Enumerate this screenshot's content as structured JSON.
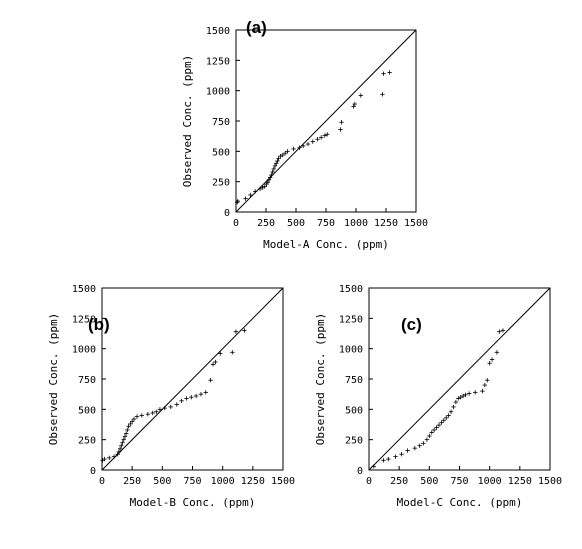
{
  "chart_data": [
    {
      "type": "scatter",
      "panel_label": "(a)",
      "xlabel": "Model-A Conc. (ppm)",
      "ylabel": "Observed Conc. (ppm)",
      "xlim": [
        0,
        1500
      ],
      "ylim": [
        0,
        1500
      ],
      "xticks": [
        "0",
        "250",
        "500",
        "750",
        "1000",
        "1250",
        "1500"
      ],
      "yticks": [
        "0",
        "250",
        "500",
        "750",
        "1000",
        "1250",
        "1500"
      ],
      "reference_line": "y = x",
      "marker": "plus",
      "grid": false,
      "points": [
        [
          10,
          80
        ],
        [
          15,
          90
        ],
        [
          80,
          110
        ],
        [
          120,
          140
        ],
        [
          160,
          170
        ],
        [
          200,
          190
        ],
        [
          220,
          200
        ],
        [
          240,
          210
        ],
        [
          255,
          230
        ],
        [
          265,
          245
        ],
        [
          275,
          265
        ],
        [
          285,
          285
        ],
        [
          295,
          305
        ],
        [
          305,
          330
        ],
        [
          315,
          355
        ],
        [
          325,
          380
        ],
        [
          335,
          400
        ],
        [
          345,
          420
        ],
        [
          355,
          440
        ],
        [
          370,
          460
        ],
        [
          390,
          470
        ],
        [
          410,
          485
        ],
        [
          430,
          500
        ],
        [
          480,
          520
        ],
        [
          530,
          530
        ],
        [
          560,
          545
        ],
        [
          600,
          560
        ],
        [
          640,
          580
        ],
        [
          680,
          600
        ],
        [
          710,
          615
        ],
        [
          740,
          630
        ],
        [
          760,
          640
        ],
        [
          870,
          680
        ],
        [
          880,
          740
        ],
        [
          980,
          870
        ],
        [
          990,
          890
        ],
        [
          1040,
          960
        ],
        [
          1220,
          970
        ],
        [
          1230,
          1140
        ],
        [
          1280,
          1150
        ]
      ]
    },
    {
      "type": "scatter",
      "panel_label": "(b)",
      "xlabel": "Model-B Conc. (ppm)",
      "ylabel": "Observed Conc. (ppm)",
      "xlim": [
        0,
        1500
      ],
      "ylim": [
        0,
        1500
      ],
      "xticks": [
        "0",
        "250",
        "500",
        "750",
        "1000",
        "1250",
        "1500"
      ],
      "yticks": [
        "0",
        "250",
        "500",
        "750",
        "1000",
        "1250",
        "1500"
      ],
      "reference_line": "y = x",
      "marker": "plus",
      "grid": false,
      "points": [
        [
          5,
          80
        ],
        [
          20,
          90
        ],
        [
          60,
          100
        ],
        [
          100,
          110
        ],
        [
          130,
          130
        ],
        [
          140,
          150
        ],
        [
          150,
          175
        ],
        [
          160,
          200
        ],
        [
          170,
          225
        ],
        [
          180,
          250
        ],
        [
          190,
          275
        ],
        [
          200,
          300
        ],
        [
          210,
          330
        ],
        [
          220,
          360
        ],
        [
          235,
          380
        ],
        [
          250,
          400
        ],
        [
          265,
          420
        ],
        [
          290,
          440
        ],
        [
          330,
          450
        ],
        [
          380,
          460
        ],
        [
          420,
          470
        ],
        [
          450,
          480
        ],
        [
          480,
          500
        ],
        [
          520,
          510
        ],
        [
          570,
          520
        ],
        [
          620,
          540
        ],
        [
          660,
          570
        ],
        [
          700,
          590
        ],
        [
          740,
          600
        ],
        [
          780,
          610
        ],
        [
          820,
          625
        ],
        [
          860,
          640
        ],
        [
          900,
          740
        ],
        [
          920,
          870
        ],
        [
          940,
          890
        ],
        [
          980,
          960
        ],
        [
          1080,
          970
        ],
        [
          1110,
          1140
        ],
        [
          1180,
          1150
        ]
      ]
    },
    {
      "type": "scatter",
      "panel_label": "(c)",
      "xlabel": "Model-C Conc. (ppm)",
      "ylabel": "Observed Conc. (ppm)",
      "xlim": [
        0,
        1500
      ],
      "ylim": [
        0,
        1500
      ],
      "xticks": [
        "0",
        "250",
        "500",
        "750",
        "1000",
        "1250",
        "1500"
      ],
      "yticks": [
        "0",
        "250",
        "500",
        "750",
        "1000",
        "1250",
        "1500"
      ],
      "reference_line": "y = x",
      "marker": "plus",
      "grid": false,
      "points": [
        [
          40,
          30
        ],
        [
          120,
          80
        ],
        [
          160,
          90
        ],
        [
          220,
          110
        ],
        [
          270,
          130
        ],
        [
          320,
          160
        ],
        [
          380,
          180
        ],
        [
          420,
          200
        ],
        [
          450,
          220
        ],
        [
          480,
          250
        ],
        [
          500,
          280
        ],
        [
          520,
          310
        ],
        [
          540,
          330
        ],
        [
          560,
          350
        ],
        [
          580,
          370
        ],
        [
          600,
          390
        ],
        [
          620,
          410
        ],
        [
          640,
          430
        ],
        [
          660,
          450
        ],
        [
          680,
          480
        ],
        [
          700,
          520
        ],
        [
          720,
          560
        ],
        [
          740,
          590
        ],
        [
          760,
          600
        ],
        [
          780,
          610
        ],
        [
          800,
          620
        ],
        [
          830,
          630
        ],
        [
          880,
          640
        ],
        [
          940,
          650
        ],
        [
          960,
          700
        ],
        [
          980,
          740
        ],
        [
          1000,
          880
        ],
        [
          1020,
          910
        ],
        [
          1060,
          970
        ],
        [
          1080,
          1140
        ],
        [
          1110,
          1150
        ]
      ]
    }
  ]
}
